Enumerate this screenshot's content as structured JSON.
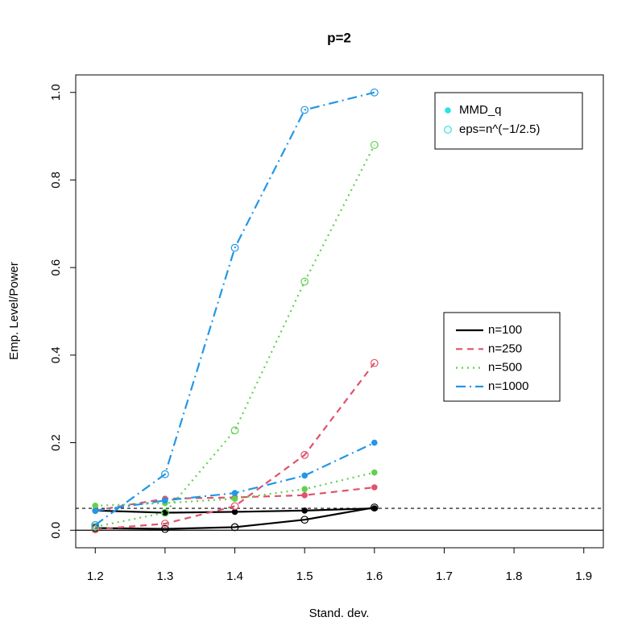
{
  "chart_data": {
    "type": "line",
    "title": "p=2",
    "x_label": "Stand. dev.",
    "y_label": "Emp. Level/Power",
    "x": [
      1.2,
      1.3,
      1.4,
      1.5,
      1.6
    ],
    "xlim": [
      1.172,
      1.928
    ],
    "ylim": [
      -0.04,
      1.04
    ],
    "xticks": [
      1.2,
      1.3,
      1.4,
      1.5,
      1.6,
      1.7,
      1.8,
      1.9
    ],
    "yticks": [
      {
        "value": 0,
        "label": "0.0"
      },
      0.2,
      0.4,
      0.6,
      0.8,
      {
        "value": 1,
        "label": "1.0"
      }
    ],
    "reference_lines": [
      {
        "value": 0.05,
        "dash": "dashed"
      },
      {
        "value": 0,
        "dash": "solid"
      }
    ],
    "series": [
      {
        "name": "n=100",
        "color": "#000000",
        "dash": "solid",
        "mmd_values": [
          0.045,
          0.04,
          0.042,
          0.045,
          0.05
        ],
        "eps_values": [
          0.005,
          0.003,
          0.007,
          0.024,
          0.052
        ]
      },
      {
        "name": "n=250",
        "color": "#DF536B",
        "dash": "dashed",
        "mmd_values": [
          0.045,
          0.072,
          0.075,
          0.08,
          0.098
        ],
        "eps_values": [
          0.002,
          0.015,
          0.055,
          0.172,
          0.382
        ]
      },
      {
        "name": "n=500",
        "color": "#61D04F",
        "dash": "dotted",
        "mmd_values": [
          0.056,
          0.062,
          0.072,
          0.094,
          0.132
        ],
        "eps_values": [
          0.008,
          0.04,
          0.228,
          0.568,
          0.88
        ]
      },
      {
        "name": "n=1000",
        "color": "#2297E6",
        "dash": "dotdash",
        "mmd_values": [
          0.044,
          0.068,
          0.085,
          0.125,
          0.2
        ],
        "eps_values": [
          0.012,
          0.128,
          0.645,
          0.96,
          1.0
        ]
      }
    ],
    "marker_legend": {
      "color": "#28E2E5",
      "entries": [
        "MMD_q",
        "eps=n^(−1/2.5)"
      ]
    }
  }
}
